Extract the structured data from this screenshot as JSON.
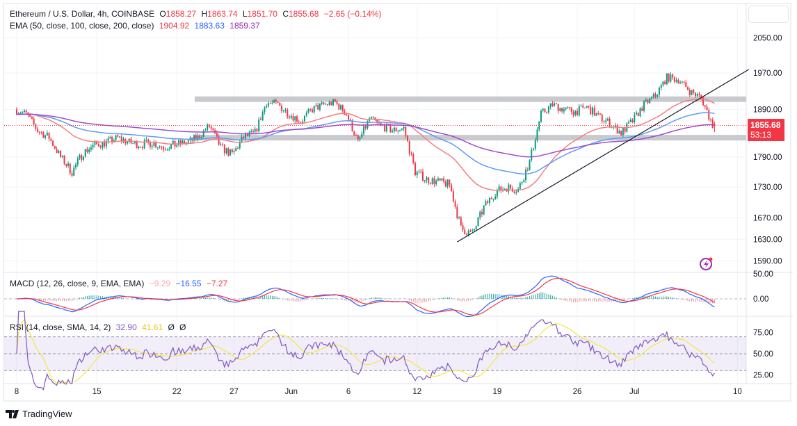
{
  "legend": {
    "symbol": "Ethereum / U.S. Dollar, 4h, COINBASE",
    "o_label": "O",
    "o": "1858.27",
    "h_label": "H",
    "h": "1863.74",
    "l_label": "L",
    "l": "1851.70",
    "c_label": "C",
    "c": "1855.68",
    "change": "−2.65 (−0.14%)",
    "ema_label": "EMA (50, close, 100, close, 200, close)",
    "ema50": "1904.92",
    "ema100": "1883.63",
    "ema200": "1859.37",
    "macd_label": "MACD (12, 26, close, 9, EMA, EMA)",
    "macd_hist": "−9.29",
    "macd": "−16.55",
    "macd_signal": "−7.27",
    "rsi_label": "RSI (14, close, SMA, 14, 2)",
    "rsi": "32.90",
    "rsi_ma": "41.61",
    "rsi_extra1": "Ø",
    "rsi_extra2": "Ø"
  },
  "price_tag": {
    "price": "1855.68",
    "countdown": "53:13"
  },
  "colors": {
    "up": "#089981",
    "down": "#f23645",
    "ema50": "#f77c80",
    "ema100": "#5b9cf6",
    "ema200": "#9c4dcc",
    "macd": "#2962ff",
    "signal": "#f23645",
    "rsi": "#7e57c2",
    "rsi_ma": "#f5e642"
  },
  "branding": "TradingView",
  "chart_data": {
    "type": "candlestick",
    "title": "Ethereum / U.S. Dollar, 4h, COINBASE",
    "price_axis_ticks": [
      "2050.00",
      "1970.00",
      "1890.00",
      "1790.00",
      "1730.00",
      "1630.00",
      "1670.00",
      "1590.00"
    ],
    "price_axis_values": [
      2050,
      1970,
      1890,
      1790,
      1730,
      1630,
      1670,
      1590
    ],
    "macd_axis_ticks": [
      "50.00",
      "0.00"
    ],
    "rsi_axis_ticks": [
      "75.00",
      "50.00",
      "25.00"
    ],
    "date_ticks": [
      {
        "label": "8",
        "day": 0
      },
      {
        "label": "15",
        "day": 7
      },
      {
        "label": "22",
        "day": 14
      },
      {
        "label": "27",
        "day": 19
      },
      {
        "label": "Jun",
        "day": 24
      },
      {
        "label": "6",
        "day": 29
      },
      {
        "label": "12",
        "day": 35
      },
      {
        "label": "19",
        "day": 42
      },
      {
        "label": "26",
        "day": 49
      },
      {
        "label": "Jul",
        "day": 54
      },
      {
        "label": "10",
        "day": 63
      }
    ],
    "daily_close": [
      1880,
      1845,
      1830,
      1790,
      1760,
      1800,
      1815,
      1820,
      1830,
      1820,
      1815,
      1820,
      1810,
      1815,
      1820,
      1830,
      1855,
      1810,
      1795,
      1830,
      1840,
      1905,
      1900,
      1880,
      1865,
      1890,
      1900,
      1905,
      1880,
      1820,
      1870,
      1855,
      1845,
      1850,
      1760,
      1745,
      1740,
      1735,
      1650,
      1640,
      1690,
      1720,
      1730,
      1725,
      1780,
      1880,
      1900,
      1890,
      1885,
      1895,
      1875,
      1860,
      1840,
      1865,
      1900,
      1920,
      1960,
      1955,
      1930,
      1915,
      1856
    ],
    "last_candle": {
      "open": 1858.27,
      "high": 1863.74,
      "low": 1851.7,
      "close": 1855.68
    },
    "support_zone": 1830,
    "resistance_zone": 1912,
    "trendline": [
      {
        "day": 38.5,
        "price": 1625
      },
      {
        "day": 64,
        "price": 1978
      }
    ],
    "ema_periods": [
      50,
      100,
      200
    ],
    "rsi_bands": [
      70,
      30
    ]
  }
}
